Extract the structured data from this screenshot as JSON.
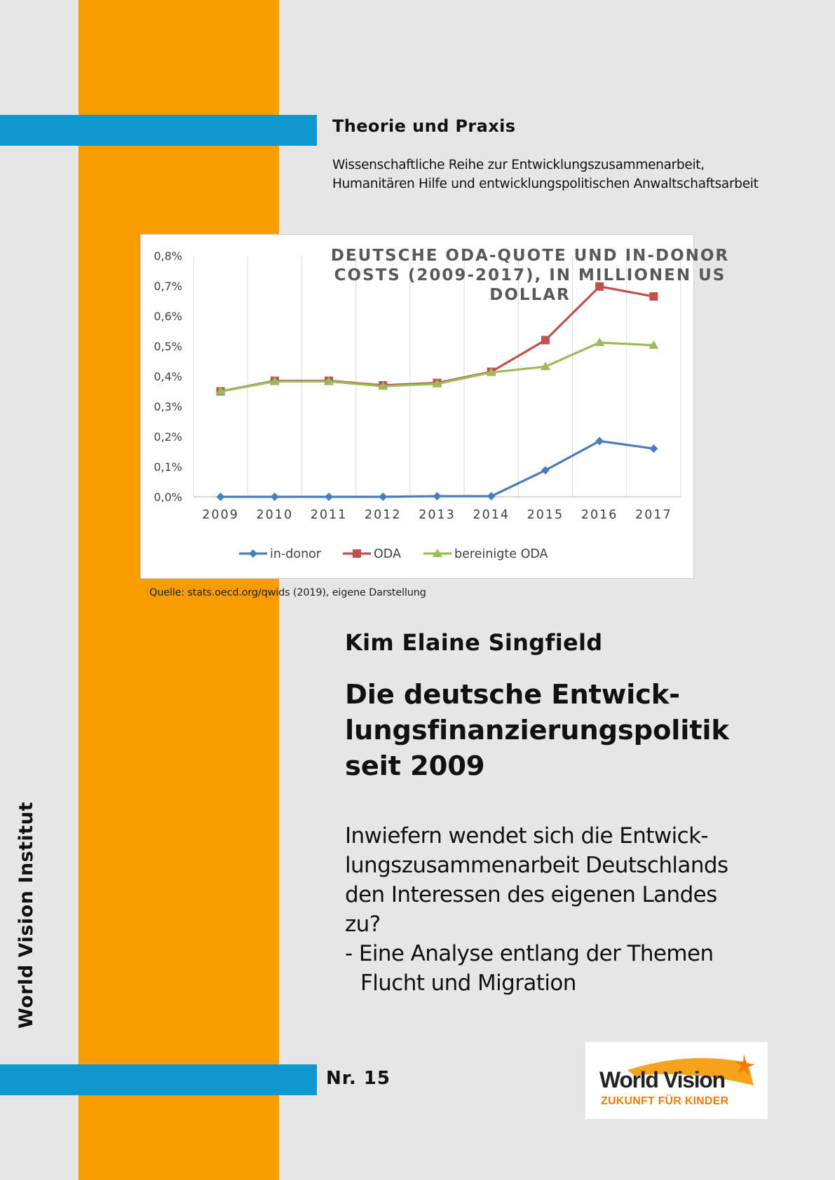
{
  "cover": {
    "series_title": "Theorie und Praxis",
    "series_subtitle": [
      "Wissenschaftliche Reihe zur Entwicklungszusammenarbeit,",
      "Humanitären Hilfe und entwicklungspolitischen Anwaltschaftsarbeit"
    ],
    "source_note": "Quelle: stats.oecd.org/qwids (2019), eigene Darstellung",
    "author": "Kim Elaine Singfield",
    "title_lines": [
      "Die deutsche Entwick-",
      "lungsfinanzierungspolitik",
      "seit 2009"
    ],
    "subtitle_lines": [
      "Inwiefern wendet sich die Entwick-",
      "lungszusammenarbeit Deutschlands",
      "den Interessen des eigenen Landes",
      "zu?",
      "- Eine Analyse entlang der Themen",
      "Flucht und Migration"
    ],
    "institute_label": "World Vision Institut",
    "issue_number": "Nr. 15",
    "logo": {
      "name": "World Vision",
      "tagline": "ZUKUNFT FÜR KINDER"
    },
    "colors": {
      "orange_band": "#f99c00",
      "blue_bar": "#0f97d0",
      "background": "#e6e6e6"
    }
  },
  "chart_data": {
    "type": "line",
    "title": "DEUTSCHE ODA-QUOTE UND IN-DONOR COSTS (2009-2017), IN MILLIONEN US DOLLAR",
    "categories": [
      "2009",
      "2010",
      "2011",
      "2012",
      "2013",
      "2014",
      "2015",
      "2016",
      "2017"
    ],
    "y_ticks": [
      "0,0%",
      "0,1%",
      "0,2%",
      "0,3%",
      "0,4%",
      "0,5%",
      "0,6%",
      "0,7%",
      "0,8%"
    ],
    "ylim": [
      0,
      0.8
    ],
    "grid": "vertical",
    "legend_position": "bottom",
    "series": [
      {
        "name": "in-donor",
        "color": "#4a7ebb",
        "marker": "diamond",
        "values": [
          0.0,
          0.0,
          0.0,
          0.0,
          0.002,
          0.002,
          0.088,
          0.185,
          0.16
        ]
      },
      {
        "name": "ODA",
        "color": "#c0504d",
        "marker": "square",
        "values": [
          0.35,
          0.385,
          0.385,
          0.37,
          0.378,
          0.415,
          0.52,
          0.698,
          0.665
        ]
      },
      {
        "name": "bereinigte ODA",
        "color": "#9bbb59",
        "marker": "triangle",
        "values": [
          0.35,
          0.383,
          0.383,
          0.367,
          0.375,
          0.413,
          0.432,
          0.512,
          0.503
        ]
      }
    ]
  }
}
